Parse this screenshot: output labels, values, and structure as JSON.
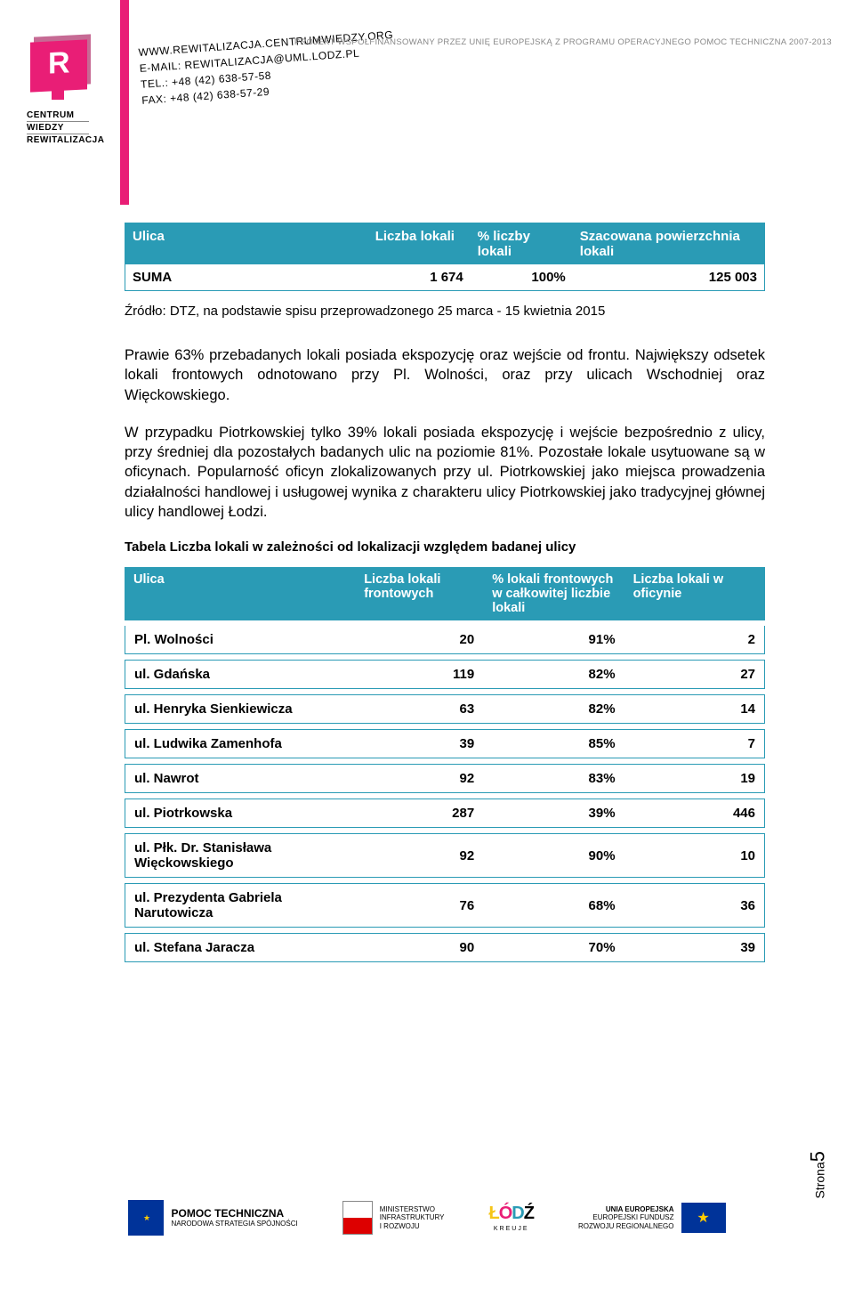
{
  "header": {
    "logo_letter": "R",
    "logo_line1": "CENTRUM",
    "logo_line2": "WIEDZY",
    "logo_line3": "REWITALIZACJA",
    "contact_line1": "WWW.REWITALIZACJA.CENTRUMWIEDZY.ORG",
    "contact_line2": "E-MAIL: REWITALIZACJA@UML.LODZ.PL",
    "contact_line3": "TEL.: +48 (42) 638-57-58",
    "contact_line4": "FAX: +48 (42) 638-57-29",
    "top_right": "PROJEKT WSPÓŁFINANSOWANY PRZEZ UNIĘ EUROPEJSKĄ Z PROGRAMU OPERACYJNEGO POMOC TECHNICZNA 2007-2013"
  },
  "table1": {
    "h1": "Ulica",
    "h2": "Liczba lokali",
    "h3": "% liczby lokali",
    "h4": "Szacowana powierzchnia lokali",
    "row_label": "SUMA",
    "row_v1": "1 674",
    "row_v2": "100%",
    "row_v3": "125 003"
  },
  "source": "Źródło: DTZ, na podstawie spisu przeprowadzonego 25 marca - 15 kwietnia 2015",
  "para1": "Prawie 63% przebadanych lokali posiada ekspozycję oraz wejście od frontu. Największy odsetek lokali frontowych odnotowano przy Pl. Wolności, oraz przy ulicach Wschodniej oraz Więckowskiego.",
  "para2": "W przypadku Piotrkowskiej tylko 39% lokali posiada ekspozycję i wejście bezpośrednio z ulicy, przy średniej dla pozostałych badanych ulic na poziomie 81%. Pozostałe lokale usytuowane są w oficynach. Popularność oficyn zlokalizowanych przy ul. Piotrkowskiej jako miejsca prowadzenia działalności handlowej i usługowej wynika z charakteru ulicy Piotrkowskiej jako tradycyjnej głównej ulicy handlowej Łodzi.",
  "table2": {
    "caption": "Tabela Liczba lokali w zależności od lokalizacji względem badanej ulicy",
    "h1": "Ulica",
    "h2": "Liczba lokali frontowych",
    "h3": "% lokali frontowych w całkowitej liczbie lokali",
    "h4": "Liczba lokali w oficynie",
    "rows": [
      {
        "name": "Pl. Wolności",
        "v1": "20",
        "v2": "91%",
        "v3": "2",
        "joined": true
      },
      {
        "name": "ul. Gdańska",
        "v1": "119",
        "v2": "82%",
        "v3": "27"
      },
      {
        "name": "ul. Henryka Sienkiewicza",
        "v1": "63",
        "v2": "82%",
        "v3": "14"
      },
      {
        "name": "ul. Ludwika Zamenhofa",
        "v1": "39",
        "v2": "85%",
        "v3": "7"
      },
      {
        "name": "ul. Nawrot",
        "v1": "92",
        "v2": "83%",
        "v3": "19"
      },
      {
        "name": "ul. Piotrkowska",
        "v1": "287",
        "v2": "39%",
        "v3": "446"
      },
      {
        "name": "ul. Płk. Dr. Stanisława Więckowskiego",
        "v1": "92",
        "v2": "90%",
        "v3": "10"
      },
      {
        "name": "ul. Prezydenta Gabriela Narutowicza",
        "v1": "76",
        "v2": "68%",
        "v3": "36"
      },
      {
        "name": "ul. Stefana Jaracza",
        "v1": "90",
        "v2": "70%",
        "v3": "39"
      }
    ]
  },
  "footer": {
    "f1a": "POMOC TECHNICZNA",
    "f1b": "NARODOWA STRATEGIA SPÓJNOŚCI",
    "f2a": "MINISTERSTWO",
    "f2b": "INFRASTRUKTURY",
    "f2c": "I ROZWOJU",
    "f3_sub": "KREUJE",
    "f4a": "UNIA EUROPEJSKA",
    "f4b": "EUROPEJSKI FUNDUSZ",
    "f4c": "ROZWOJU REGIONALNEGO"
  },
  "page": {
    "label": "Strona",
    "num": "5"
  },
  "colors": {
    "accent": "#e91e76",
    "table_header": "#2a9bb5",
    "table_border": "#2a9bb5",
    "grey_text": "#888888",
    "eu_blue": "#003399",
    "eu_yellow": "#ffcc00"
  }
}
